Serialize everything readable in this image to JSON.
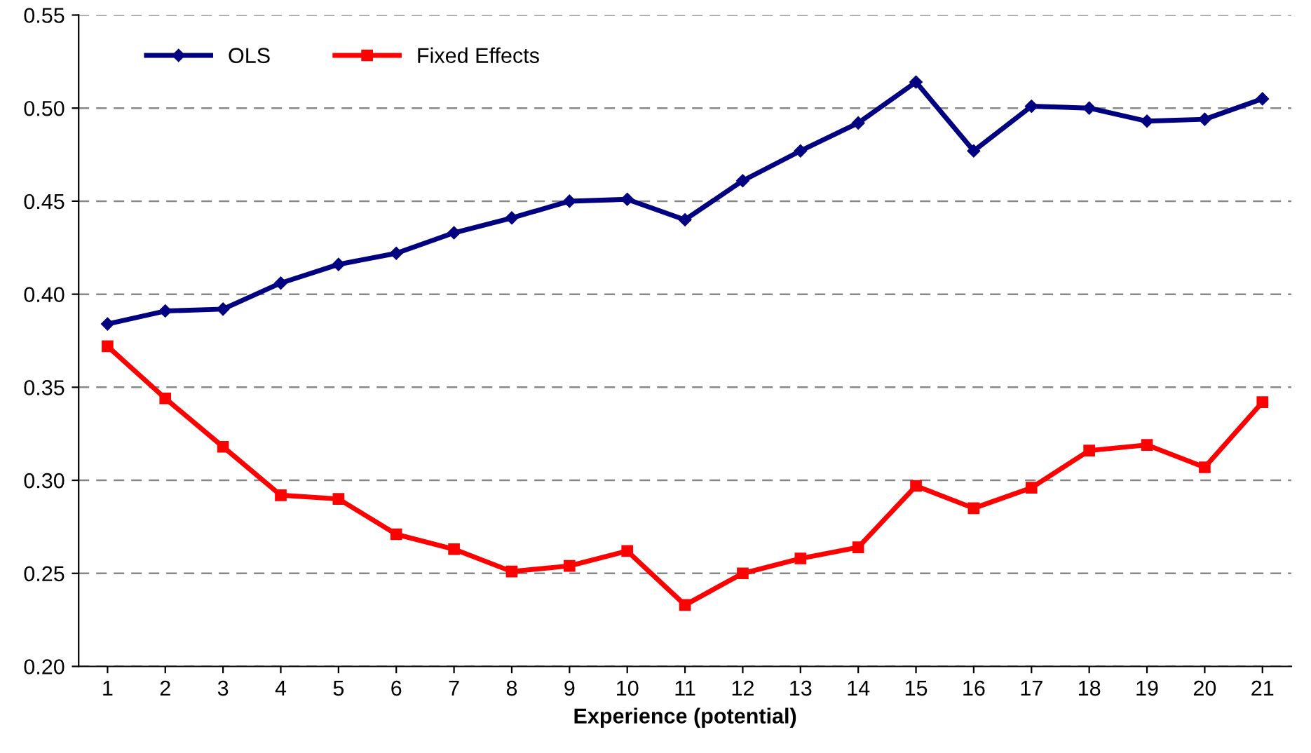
{
  "chart_data": {
    "type": "line",
    "xlabel": "Experience (potential)",
    "categories": [
      "1",
      "2",
      "3",
      "4",
      "5",
      "6",
      "7",
      "8",
      "9",
      "10",
      "11",
      "12",
      "13",
      "14",
      "15",
      "16",
      "17",
      "18",
      "19",
      "20",
      "21"
    ],
    "series": [
      {
        "name": "OLS",
        "color": "#000080",
        "marker": "diamond",
        "values": [
          0.384,
          0.391,
          0.392,
          0.406,
          0.416,
          0.422,
          0.433,
          0.441,
          0.45,
          0.451,
          0.44,
          0.461,
          0.477,
          0.492,
          0.514,
          0.477,
          0.501,
          0.5,
          0.493,
          0.494,
          0.505
        ]
      },
      {
        "name": "Fixed Effects",
        "color": "#ff0000",
        "marker": "square",
        "values": [
          0.372,
          0.344,
          0.318,
          0.292,
          0.29,
          0.271,
          0.263,
          0.251,
          0.254,
          0.262,
          0.233,
          0.25,
          0.258,
          0.264,
          0.297,
          0.285,
          0.296,
          0.316,
          0.319,
          0.307,
          0.342
        ]
      }
    ],
    "ylim": [
      0.2,
      0.55
    ],
    "yticks": [
      {
        "value": 0.2,
        "label": "0.20"
      },
      {
        "value": 0.25,
        "label": "0.25"
      },
      {
        "value": 0.3,
        "label": "0.30"
      },
      {
        "value": 0.35,
        "label": "0.35"
      },
      {
        "value": 0.4,
        "label": "0.40"
      },
      {
        "value": 0.45,
        "label": "0.45"
      },
      {
        "value": 0.5,
        "label": "0.50"
      },
      {
        "value": 0.55,
        "label": "0.55"
      }
    ],
    "grid": "y",
    "legend": "top left",
    "line_style": "solid"
  }
}
